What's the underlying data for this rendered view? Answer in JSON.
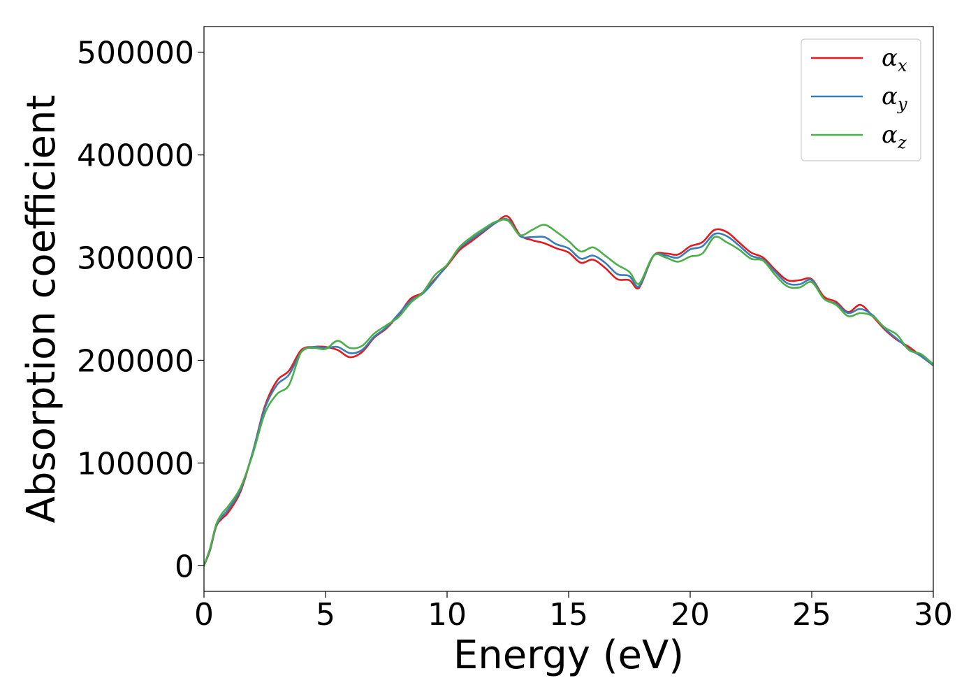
{
  "chart_data": {
    "type": "line",
    "title": "",
    "xlabel": "Energy (eV)",
    "ylabel": "Absorption coefficient",
    "xlim": [
      0,
      30
    ],
    "ylim": [
      -25000,
      525000
    ],
    "xticks": [
      0,
      5,
      10,
      15,
      20,
      25,
      30
    ],
    "xtick_labels": [
      "0",
      "5",
      "10",
      "15",
      "20",
      "25",
      "30"
    ],
    "yticks": [
      0,
      100000,
      200000,
      300000,
      400000,
      500000
    ],
    "ytick_labels": [
      "0",
      "100000",
      "200000",
      "300000",
      "400000",
      "500000"
    ],
    "grid": false,
    "legend_position": "top-right",
    "x": [
      0,
      0.25,
      0.5,
      0.75,
      1,
      1.5,
      2,
      2.5,
      3,
      3.5,
      4,
      4.5,
      5,
      5.5,
      6,
      6.5,
      7,
      7.5,
      8,
      8.5,
      9,
      9.5,
      10,
      10.5,
      11,
      11.5,
      12,
      12.5,
      13,
      13.5,
      14,
      14.5,
      15,
      15.5,
      16,
      16.5,
      17,
      17.5,
      17.8,
      18,
      18.5,
      19,
      19.5,
      20,
      20.5,
      21,
      21.5,
      22,
      22.5,
      23,
      23.5,
      24,
      24.5,
      25,
      25.5,
      26,
      26.5,
      27,
      27.5,
      28,
      28.5,
      29,
      29.5,
      30
    ],
    "series": [
      {
        "name": "α",
        "subscript": "x",
        "color": "#e41a1c",
        "values": [
          0,
          15000,
          38000,
          46000,
          52000,
          72000,
          110000,
          155000,
          180000,
          190000,
          210000,
          213000,
          213000,
          210000,
          203000,
          208000,
          222000,
          231000,
          244000,
          260000,
          266000,
          279000,
          292000,
          307000,
          316000,
          325000,
          334000,
          340000,
          322000,
          317000,
          314000,
          309000,
          305000,
          295000,
          298000,
          290000,
          279000,
          278000,
          270000,
          275000,
          302000,
          304000,
          303000,
          311000,
          315000,
          327000,
          325000,
          315000,
          305000,
          300000,
          288000,
          278000,
          278000,
          279000,
          262000,
          257000,
          247000,
          254000,
          243000,
          230000,
          220000,
          213000,
          204000,
          195000
        ]
      },
      {
        "name": "α",
        "subscript": "y",
        "color": "#377eb8",
        "values": [
          0,
          16000,
          39000,
          48000,
          55000,
          74000,
          110000,
          153000,
          176000,
          186000,
          208000,
          213000,
          212000,
          213000,
          207000,
          210000,
          223000,
          232000,
          245000,
          258000,
          265000,
          278000,
          293000,
          309000,
          318000,
          326000,
          334000,
          337000,
          321000,
          320000,
          320000,
          313000,
          309000,
          299000,
          302000,
          295000,
          284000,
          282000,
          272000,
          276000,
          302000,
          302000,
          300000,
          308000,
          311000,
          323000,
          321000,
          312000,
          302000,
          298000,
          286000,
          275000,
          274000,
          278000,
          260000,
          255000,
          246000,
          250000,
          244000,
          231000,
          221000,
          211000,
          204000,
          195000
        ]
      },
      {
        "name": "α",
        "subscript": "z",
        "color": "#4daf4a",
        "values": [
          0,
          17000,
          40000,
          51000,
          58000,
          76000,
          108000,
          148000,
          167000,
          176000,
          208000,
          212000,
          211000,
          219000,
          212000,
          214000,
          226000,
          234000,
          242000,
          256000,
          266000,
          283000,
          293000,
          310000,
          320000,
          328000,
          335000,
          336000,
          322000,
          327000,
          332000,
          325000,
          316000,
          306000,
          310000,
          302000,
          293000,
          286000,
          275000,
          278000,
          302000,
          300000,
          296000,
          301000,
          304000,
          320000,
          315000,
          308000,
          299000,
          297000,
          283000,
          272000,
          271000,
          276000,
          260000,
          254000,
          243000,
          246000,
          243000,
          232000,
          225000,
          210000,
          206000,
          196000
        ]
      }
    ]
  }
}
